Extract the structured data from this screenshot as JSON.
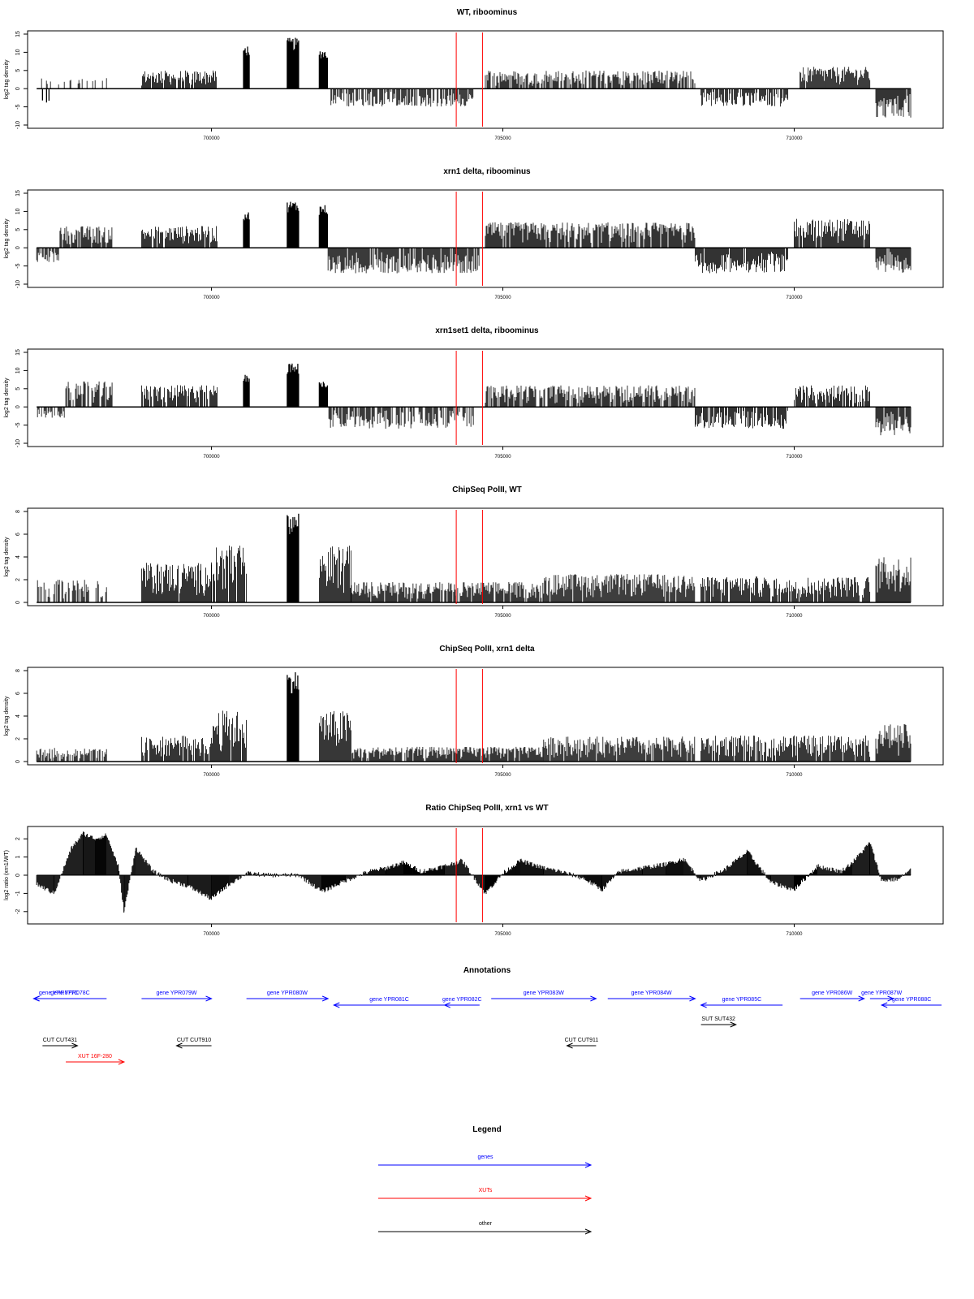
{
  "x_axis": {
    "range": [
      696900,
      712500
    ],
    "ticks": [
      700000,
      705000,
      710000
    ],
    "tick_labels": [
      "700000",
      "705000",
      "710000"
    ]
  },
  "markers": {
    "color": "#ff0000",
    "positions": [
      704200,
      704650
    ]
  },
  "chart_data": [
    {
      "type": "bar",
      "title": "WT, riboominus",
      "ylabel": "log2 tag density",
      "ylim": [
        -10,
        15
      ],
      "yticks": [
        -10,
        -5,
        0,
        5,
        10,
        15
      ],
      "baseline": 0,
      "segments": [
        {
          "from": 697000,
          "to": 698200,
          "value": 3,
          "sign": 1,
          "density": 0.25
        },
        {
          "from": 697100,
          "to": 697300,
          "value": -4,
          "sign": -1,
          "density": 0.3
        },
        {
          "from": 698800,
          "to": 700100,
          "value": 5,
          "sign": 1,
          "density": 0.9
        },
        {
          "from": 700550,
          "to": 700650,
          "value": 12,
          "sign": 1,
          "density": 1
        },
        {
          "from": 701300,
          "to": 701500,
          "value": 14,
          "sign": 1,
          "density": 1
        },
        {
          "from": 701850,
          "to": 702000,
          "value": 11,
          "sign": 1,
          "density": 1
        },
        {
          "from": 702050,
          "to": 704000,
          "value": -5,
          "sign": -1,
          "density": 0.7
        },
        {
          "from": 704000,
          "to": 704500,
          "value": -5,
          "sign": -1,
          "density": 0.9
        },
        {
          "from": 704700,
          "to": 708300,
          "value": 5,
          "sign": 1,
          "density": 0.75
        },
        {
          "from": 708400,
          "to": 709900,
          "value": -5,
          "sign": -1,
          "density": 0.8
        },
        {
          "from": 710100,
          "to": 711300,
          "value": 6,
          "sign": 1,
          "density": 0.95
        },
        {
          "from": 711400,
          "to": 712000,
          "value": -8,
          "sign": -1,
          "density": 0.95
        }
      ]
    },
    {
      "type": "bar",
      "title": "xrn1 delta, riboominus",
      "ylabel": "log2 tag density",
      "ylim": [
        -10,
        15
      ],
      "yticks": [
        -10,
        -5,
        0,
        5,
        10,
        15
      ],
      "baseline": 0,
      "segments": [
        {
          "from": 697000,
          "to": 697400,
          "value": -4,
          "sign": -1,
          "density": 0.8
        },
        {
          "from": 697400,
          "to": 698300,
          "value": 6,
          "sign": 1,
          "density": 0.9
        },
        {
          "from": 698800,
          "to": 700100,
          "value": 6,
          "sign": 1,
          "density": 0.9
        },
        {
          "from": 700550,
          "to": 700650,
          "value": 10,
          "sign": 1,
          "density": 1
        },
        {
          "from": 701300,
          "to": 701500,
          "value": 13,
          "sign": 1,
          "density": 1
        },
        {
          "from": 701850,
          "to": 702000,
          "value": 12,
          "sign": 1,
          "density": 1
        },
        {
          "from": 702000,
          "to": 704600,
          "value": -7,
          "sign": -1,
          "density": 0.9
        },
        {
          "from": 704700,
          "to": 708300,
          "value": 7,
          "sign": 1,
          "density": 0.9
        },
        {
          "from": 708300,
          "to": 709900,
          "value": -7,
          "sign": -1,
          "density": 0.95
        },
        {
          "from": 710000,
          "to": 711300,
          "value": 8,
          "sign": 1,
          "density": 0.95
        },
        {
          "from": 711400,
          "to": 712000,
          "value": -7,
          "sign": -1,
          "density": 0.95
        }
      ]
    },
    {
      "type": "bar",
      "title": "xrn1set1 delta, riboominus",
      "ylabel": "log2 tag density",
      "ylim": [
        -10,
        15
      ],
      "yticks": [
        -10,
        -5,
        0,
        5,
        10,
        15
      ],
      "baseline": 0,
      "segments": [
        {
          "from": 697000,
          "to": 697500,
          "value": -3,
          "sign": -1,
          "density": 0.6
        },
        {
          "from": 697500,
          "to": 698300,
          "value": 7,
          "sign": 1,
          "density": 0.8
        },
        {
          "from": 698800,
          "to": 700100,
          "value": 6,
          "sign": 1,
          "density": 0.85
        },
        {
          "from": 700550,
          "to": 700650,
          "value": 9,
          "sign": 1,
          "density": 1
        },
        {
          "from": 701300,
          "to": 701500,
          "value": 12,
          "sign": 1,
          "density": 1
        },
        {
          "from": 701850,
          "to": 702000,
          "value": 7,
          "sign": 1,
          "density": 1
        },
        {
          "from": 702000,
          "to": 704500,
          "value": -6,
          "sign": -1,
          "density": 0.7
        },
        {
          "from": 704700,
          "to": 708300,
          "value": 6,
          "sign": 1,
          "density": 0.8
        },
        {
          "from": 708300,
          "to": 709900,
          "value": -6,
          "sign": -1,
          "density": 0.85
        },
        {
          "from": 710000,
          "to": 711300,
          "value": 6,
          "sign": 1,
          "density": 0.9
        },
        {
          "from": 711400,
          "to": 712000,
          "value": -8,
          "sign": -1,
          "density": 0.95
        }
      ]
    },
    {
      "type": "bar",
      "title": "ChipSeq PolII, WT",
      "ylabel": "log2 tag density",
      "ylim": [
        0,
        8
      ],
      "yticks": [
        0,
        2,
        4,
        6,
        8
      ],
      "baseline": 0,
      "segments": [
        {
          "from": 697000,
          "to": 698200,
          "value": 2,
          "sign": 1,
          "density": 0.5
        },
        {
          "from": 698800,
          "to": 700000,
          "value": 3.5,
          "sign": 1,
          "density": 0.95
        },
        {
          "from": 700000,
          "to": 700600,
          "value": 5,
          "sign": 1,
          "density": 0.9
        },
        {
          "from": 701300,
          "to": 701500,
          "value": 8,
          "sign": 1,
          "density": 1
        },
        {
          "from": 701850,
          "to": 702400,
          "value": 5,
          "sign": 1,
          "density": 1
        },
        {
          "from": 702400,
          "to": 705700,
          "value": 1.8,
          "sign": 1,
          "density": 0.9
        },
        {
          "from": 705700,
          "to": 708300,
          "value": 2.5,
          "sign": 1,
          "density": 0.95
        },
        {
          "from": 708400,
          "to": 711300,
          "value": 2.3,
          "sign": 1,
          "density": 0.9
        },
        {
          "from": 711400,
          "to": 712000,
          "value": 4,
          "sign": 1,
          "density": 1
        }
      ]
    },
    {
      "type": "bar",
      "title": "ChipSeq PolII, xrn1 delta",
      "ylabel": "log2 tag density",
      "ylim": [
        0,
        8
      ],
      "yticks": [
        0,
        2,
        4,
        6,
        8
      ],
      "baseline": 0,
      "segments": [
        {
          "from": 697000,
          "to": 698200,
          "value": 1.2,
          "sign": 1,
          "density": 0.7
        },
        {
          "from": 698800,
          "to": 700000,
          "value": 2.3,
          "sign": 1,
          "density": 0.95
        },
        {
          "from": 700000,
          "to": 700600,
          "value": 4.5,
          "sign": 1,
          "density": 0.9
        },
        {
          "from": 701300,
          "to": 701500,
          "value": 8,
          "sign": 1,
          "density": 1
        },
        {
          "from": 701850,
          "to": 702400,
          "value": 4.5,
          "sign": 1,
          "density": 1
        },
        {
          "from": 702400,
          "to": 705700,
          "value": 1.3,
          "sign": 1,
          "density": 0.9
        },
        {
          "from": 705700,
          "to": 708300,
          "value": 2.2,
          "sign": 1,
          "density": 0.95
        },
        {
          "from": 708400,
          "to": 711300,
          "value": 2.3,
          "sign": 1,
          "density": 0.9
        },
        {
          "from": 711400,
          "to": 712000,
          "value": 3.3,
          "sign": 1,
          "density": 1
        }
      ]
    },
    {
      "type": "area",
      "title": "Ratio ChipSeq PolII, xrn1 vs WT",
      "ylabel": "log2 ratio (xrn1/WT)",
      "ylim": [
        -2.5,
        2.5
      ],
      "yticks": [
        -2,
        -1,
        0,
        1,
        2
      ],
      "baseline": 0,
      "x": [
        697000,
        697300,
        697600,
        697800,
        698000,
        698200,
        698400,
        698500,
        698700,
        699000,
        699300,
        699600,
        700000,
        700300,
        700600,
        701000,
        701500,
        701900,
        702300,
        702700,
        703000,
        703300,
        703600,
        704000,
        704300,
        704700,
        705000,
        705300,
        705700,
        706000,
        706400,
        706700,
        707000,
        707400,
        707800,
        708100,
        708400,
        708800,
        709200,
        709600,
        710000,
        710400,
        710800,
        711000,
        711300,
        711500,
        711800,
        712000
      ],
      "values": [
        -0.5,
        -1.0,
        1.5,
        2.3,
        2.0,
        2.2,
        0.5,
        -2.0,
        1.5,
        0.2,
        -0.3,
        -0.6,
        -1.3,
        -0.5,
        0.1,
        0.0,
        0.0,
        -0.9,
        -0.3,
        0.2,
        0.4,
        0.7,
        0.2,
        0.5,
        0.8,
        -1.0,
        0.1,
        0.8,
        0.4,
        0.2,
        -0.2,
        -0.8,
        0.2,
        0.4,
        0.6,
        0.9,
        -0.3,
        0.3,
        1.3,
        -0.4,
        -0.8,
        0.5,
        0.2,
        0.7,
        1.8,
        -0.3,
        -0.2,
        0.3
      ]
    }
  ],
  "annotations": {
    "title": "Annotations",
    "items": [
      {
        "label": "gene YPR078C",
        "from": 696950,
        "to": 698200,
        "strand": "-",
        "row": 0,
        "color": "#0000ff"
      },
      {
        "label": "gene YPR077C",
        "from": 696950,
        "to": 697800,
        "strand": "-",
        "row": 0,
        "color": "#0000ff"
      },
      {
        "label": "gene YPR079W",
        "from": 698800,
        "to": 700000,
        "strand": "+",
        "row": 0,
        "color": "#0000ff"
      },
      {
        "label": "gene YPR080W",
        "from": 700600,
        "to": 702000,
        "strand": "+",
        "row": 0,
        "color": "#0000ff"
      },
      {
        "label": "gene YPR081C",
        "from": 702100,
        "to": 704000,
        "strand": "-",
        "row": 1,
        "color": "#0000ff"
      },
      {
        "label": "gene YPR082C",
        "from": 704000,
        "to": 704600,
        "strand": "-",
        "row": 1,
        "color": "#0000ff"
      },
      {
        "label": "gene YPR083W",
        "from": 704800,
        "to": 706600,
        "strand": "+",
        "row": 0,
        "color": "#0000ff"
      },
      {
        "label": "gene YPR084W",
        "from": 706800,
        "to": 708300,
        "strand": "+",
        "row": 0,
        "color": "#0000ff"
      },
      {
        "label": "gene YPR085C",
        "from": 708400,
        "to": 709800,
        "strand": "-",
        "row": 1,
        "color": "#0000ff"
      },
      {
        "label": "gene YPR086W",
        "from": 710100,
        "to": 711200,
        "strand": "+",
        "row": 0,
        "color": "#0000ff"
      },
      {
        "label": "gene YPR087W",
        "from": 711300,
        "to": 711700,
        "strand": "+",
        "row": 0,
        "color": "#0000ff"
      },
      {
        "label": "gene YPR088C",
        "from": 711500,
        "to": 712800,
        "strand": "-",
        "row": 1,
        "color": "#0000ff"
      },
      {
        "label": "SUT SUT432",
        "from": 708400,
        "to": 709000,
        "strand": "+",
        "row": 2,
        "color": "#000000"
      },
      {
        "label": "CUT CUT431",
        "from": 697100,
        "to": 697700,
        "strand": "+",
        "row": 3,
        "color": "#000000"
      },
      {
        "label": "XUT 16F-280",
        "from": 697500,
        "to": 698500,
        "strand": "+",
        "row": 4,
        "color": "#ff0000"
      },
      {
        "label": "CUT CUT910",
        "from": 699400,
        "to": 700000,
        "strand": "-",
        "row": 3,
        "color": "#000000"
      },
      {
        "label": "CUT CUT911",
        "from": 706100,
        "to": 706600,
        "strand": "-",
        "row": 3,
        "color": "#000000"
      }
    ]
  },
  "legend": {
    "title": "Legend",
    "items": [
      {
        "label": "genes",
        "color": "#0000ff"
      },
      {
        "label": "XUTs",
        "color": "#ff0000"
      },
      {
        "label": "other",
        "color": "#000000"
      }
    ]
  }
}
